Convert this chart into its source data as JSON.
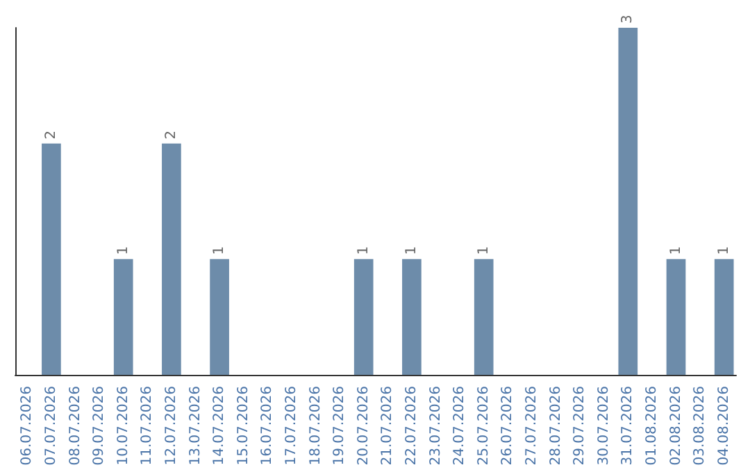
{
  "chart_data": {
    "type": "bar",
    "categories": [
      "06.07.2026",
      "07.07.2026",
      "08.07.2026",
      "09.07.2026",
      "10.07.2026",
      "11.07.2026",
      "12.07.2026",
      "13.07.2026",
      "14.07.2026",
      "15.07.2026",
      "16.07.2026",
      "17.07.2026",
      "18.07.2026",
      "19.07.2026",
      "20.07.2026",
      "21.07.2026",
      "22.07.2026",
      "23.07.2026",
      "24.07.2026",
      "25.07.2026",
      "26.07.2026",
      "27.07.2026",
      "28.07.2026",
      "29.07.2026",
      "30.07.2026",
      "31.07.2026",
      "01.08.2026",
      "02.08.2026",
      "03.08.2026",
      "04.08.2026"
    ],
    "values": [
      0,
      2,
      0,
      0,
      1,
      0,
      2,
      0,
      1,
      0,
      0,
      0,
      0,
      0,
      1,
      0,
      1,
      0,
      0,
      1,
      0,
      0,
      0,
      0,
      0,
      3,
      0,
      1,
      0,
      1
    ],
    "value_labels": [
      null,
      "2",
      null,
      null,
      "1",
      null,
      "2",
      null,
      "1",
      null,
      null,
      null,
      null,
      null,
      "1",
      null,
      "1",
      null,
      null,
      "1",
      null,
      null,
      null,
      null,
      null,
      "3",
      null,
      "1",
      null,
      "1"
    ],
    "color": "#6d8caa",
    "grid": false
  }
}
